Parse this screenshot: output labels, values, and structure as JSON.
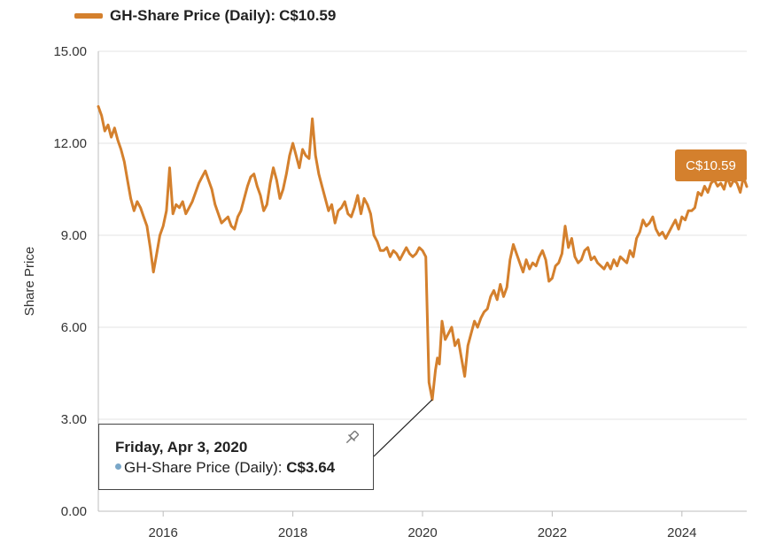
{
  "legend": {
    "label": "GH-Share Price (Daily):",
    "value": "C$10.59"
  },
  "last_value_badge": "C$10.59",
  "tooltip": {
    "date": "Friday, Apr 3, 2020",
    "series_label": "GH-Share Price (Daily):",
    "value": "C$3.64"
  },
  "colors": {
    "series": "#D4802D",
    "badge_bg": "#D4802D",
    "tooltip_dot": "#7AA7C8",
    "gridline": "#E3E3E3",
    "axis": "#BDBDBD"
  },
  "chart_data": {
    "type": "line",
    "title": "GH-Share Price (Daily): C$10.59",
    "xlabel": "",
    "ylabel": "Share Price",
    "xlim": [
      2015.0,
      2025.0
    ],
    "ylim": [
      0,
      15
    ],
    "yticks": [
      0,
      3,
      6,
      9,
      12,
      15
    ],
    "ytick_labels": [
      "0.00",
      "3.00",
      "6.00",
      "9.00",
      "12.00",
      "15.00"
    ],
    "xticks": [
      2016,
      2018,
      2020,
      2022,
      2024
    ],
    "xtick_labels": [
      "2016",
      "2018",
      "2020",
      "2022",
      "2024"
    ],
    "grid": "horizontal",
    "legend": "top-left",
    "series": [
      {
        "name": "GH-Share Price (Daily)",
        "last_value": 10.59,
        "x": [
          2015.0,
          2015.05,
          2015.1,
          2015.15,
          2015.2,
          2015.25,
          2015.3,
          2015.35,
          2015.4,
          2015.45,
          2015.5,
          2015.55,
          2015.6,
          2015.65,
          2015.7,
          2015.75,
          2015.8,
          2015.85,
          2015.9,
          2015.95,
          2016.0,
          2016.05,
          2016.1,
          2016.15,
          2016.2,
          2016.25,
          2016.3,
          2016.35,
          2016.4,
          2016.45,
          2016.5,
          2016.55,
          2016.6,
          2016.65,
          2016.7,
          2016.75,
          2016.8,
          2016.9,
          2017.0,
          2017.05,
          2017.1,
          2017.15,
          2017.2,
          2017.25,
          2017.3,
          2017.35,
          2017.4,
          2017.45,
          2017.5,
          2017.55,
          2017.6,
          2017.65,
          2017.7,
          2017.75,
          2017.8,
          2017.85,
          2017.9,
          2017.95,
          2018.0,
          2018.05,
          2018.1,
          2018.15,
          2018.2,
          2018.25,
          2018.3,
          2018.35,
          2018.4,
          2018.45,
          2018.5,
          2018.55,
          2018.6,
          2018.65,
          2018.7,
          2018.75,
          2018.8,
          2018.85,
          2018.9,
          2018.95,
          2019.0,
          2019.05,
          2019.1,
          2019.15,
          2019.2,
          2019.25,
          2019.3,
          2019.35,
          2019.4,
          2019.45,
          2019.5,
          2019.55,
          2019.6,
          2019.65,
          2019.7,
          2019.75,
          2019.8,
          2019.85,
          2019.9,
          2019.95,
          2020.0,
          2020.05,
          2020.1,
          2020.15,
          2020.2,
          2020.23,
          2020.26,
          2020.3,
          2020.35,
          2020.4,
          2020.45,
          2020.5,
          2020.55,
          2020.6,
          2020.65,
          2020.7,
          2020.75,
          2020.8,
          2020.85,
          2020.9,
          2020.95,
          2021.0,
          2021.05,
          2021.1,
          2021.15,
          2021.2,
          2021.25,
          2021.3,
          2021.35,
          2021.4,
          2021.45,
          2021.5,
          2021.55,
          2021.6,
          2021.65,
          2021.7,
          2021.75,
          2021.8,
          2021.85,
          2021.9,
          2021.95,
          2022.0,
          2022.05,
          2022.1,
          2022.15,
          2022.2,
          2022.25,
          2022.3,
          2022.35,
          2022.4,
          2022.45,
          2022.5,
          2022.55,
          2022.6,
          2022.65,
          2022.7,
          2022.75,
          2022.8,
          2022.85,
          2022.9,
          2022.95,
          2023.0,
          2023.05,
          2023.1,
          2023.15,
          2023.2,
          2023.25,
          2023.3,
          2023.35,
          2023.4,
          2023.45,
          2023.5,
          2023.55,
          2023.6,
          2023.65,
          2023.7,
          2023.75,
          2023.8,
          2023.85,
          2023.9,
          2023.95,
          2024.0,
          2024.05,
          2024.1,
          2024.15,
          2024.2,
          2024.25,
          2024.3,
          2024.35,
          2024.4,
          2024.45,
          2024.5,
          2024.55,
          2024.6,
          2024.65,
          2024.7,
          2024.75,
          2024.8,
          2024.85,
          2024.9,
          2024.95,
          2025.0
        ],
        "y": [
          13.2,
          12.9,
          12.4,
          12.6,
          12.2,
          12.5,
          12.1,
          11.8,
          11.4,
          10.8,
          10.2,
          9.8,
          10.1,
          9.9,
          9.6,
          9.3,
          8.6,
          7.8,
          8.4,
          9.0,
          9.3,
          9.8,
          11.2,
          9.7,
          10.0,
          9.9,
          10.1,
          9.7,
          9.9,
          10.1,
          10.4,
          10.7,
          10.9,
          11.1,
          10.8,
          10.5,
          10.0,
          9.4,
          9.6,
          9.3,
          9.2,
          9.6,
          9.8,
          10.2,
          10.6,
          10.9,
          11.0,
          10.6,
          10.3,
          9.8,
          10.0,
          10.7,
          11.2,
          10.8,
          10.2,
          10.5,
          11.0,
          11.6,
          12.0,
          11.6,
          11.2,
          11.8,
          11.6,
          11.5,
          12.8,
          11.6,
          11.0,
          10.6,
          10.2,
          9.8,
          10.0,
          9.4,
          9.8,
          9.9,
          10.1,
          9.7,
          9.6,
          9.9,
          10.3,
          9.7,
          10.2,
          10.0,
          9.7,
          9.0,
          8.8,
          8.5,
          8.5,
          8.6,
          8.3,
          8.5,
          8.4,
          8.2,
          8.4,
          8.6,
          8.4,
          8.3,
          8.4,
          8.6,
          8.5,
          8.3,
          4.2,
          3.64,
          4.6,
          5.0,
          4.8,
          6.2,
          5.6,
          5.8,
          6.0,
          5.4,
          5.6,
          5.0,
          4.4,
          5.4,
          5.8,
          6.2,
          6.0,
          6.3,
          6.5,
          6.6,
          7.0,
          7.2,
          6.9,
          7.4,
          7.0,
          7.3,
          8.2,
          8.7,
          8.4,
          8.1,
          7.8,
          8.2,
          7.9,
          8.1,
          8.0,
          8.3,
          8.5,
          8.2,
          7.5,
          7.6,
          8.0,
          8.1,
          8.4,
          9.3,
          8.6,
          8.9,
          8.3,
          8.1,
          8.2,
          8.5,
          8.6,
          8.2,
          8.3,
          8.1,
          8.0,
          7.9,
          8.1,
          7.9,
          8.2,
          8.0,
          8.3,
          8.2,
          8.1,
          8.5,
          8.3,
          8.9,
          9.1,
          9.5,
          9.3,
          9.4,
          9.6,
          9.2,
          9.0,
          9.1,
          8.9,
          9.1,
          9.3,
          9.5,
          9.2,
          9.6,
          9.5,
          9.8,
          9.8,
          9.9,
          10.4,
          10.3,
          10.6,
          10.4,
          10.7,
          10.8,
          10.6,
          10.7,
          10.5,
          10.9,
          10.6,
          10.8,
          10.7,
          10.4,
          10.9,
          10.59
        ]
      }
    ]
  }
}
